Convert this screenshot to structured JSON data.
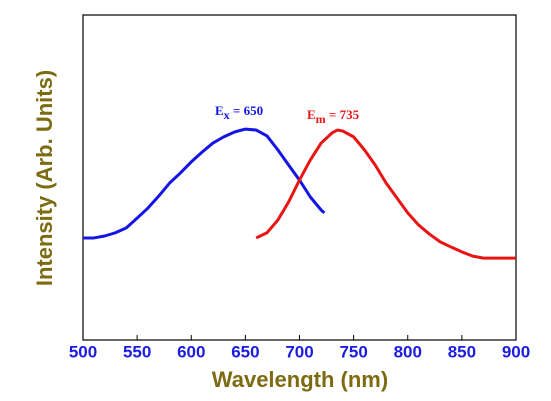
{
  "chart_data": {
    "type": "line",
    "x_label": "Wavelength (nm)",
    "y_label": "Intensity (Arb. Units)",
    "xlim": [
      500,
      900
    ],
    "xticks": [
      500,
      550,
      600,
      650,
      700,
      750,
      800,
      850,
      900
    ],
    "ylim": [
      0,
      1
    ],
    "series": [
      {
        "color": "#1414e6",
        "x": [
          500,
          510,
          520,
          530,
          540,
          550,
          560,
          570,
          580,
          590,
          600,
          610,
          620,
          630,
          640,
          650,
          660,
          670,
          680,
          690,
          700,
          710,
          720,
          723
        ],
        "values": [
          0.314,
          0.314,
          0.32,
          0.33,
          0.345,
          0.375,
          0.406,
          0.443,
          0.483,
          0.514,
          0.548,
          0.578,
          0.606,
          0.625,
          0.64,
          0.649,
          0.646,
          0.628,
          0.585,
          0.538,
          0.492,
          0.44,
          0.4,
          0.391
        ]
      },
      {
        "color": "#ea1414",
        "x": [
          660,
          670,
          680,
          690,
          700,
          710,
          720,
          730,
          735,
          740,
          750,
          760,
          770,
          780,
          790,
          800,
          810,
          820,
          830,
          840,
          850,
          860,
          870,
          880,
          900
        ],
        "values": [
          0.314,
          0.33,
          0.369,
          0.425,
          0.492,
          0.554,
          0.606,
          0.637,
          0.646,
          0.643,
          0.625,
          0.585,
          0.538,
          0.483,
          0.437,
          0.391,
          0.354,
          0.326,
          0.302,
          0.286,
          0.271,
          0.258,
          0.252,
          0.252,
          0.252
        ]
      }
    ],
    "annotations": [
      {
        "main": "E",
        "sub": "x",
        "rest": " = 650",
        "color": "#1414e6"
      },
      {
        "main": "E",
        "sub": "m",
        "rest": " = 735",
        "color": "#ea1414"
      }
    ]
  }
}
